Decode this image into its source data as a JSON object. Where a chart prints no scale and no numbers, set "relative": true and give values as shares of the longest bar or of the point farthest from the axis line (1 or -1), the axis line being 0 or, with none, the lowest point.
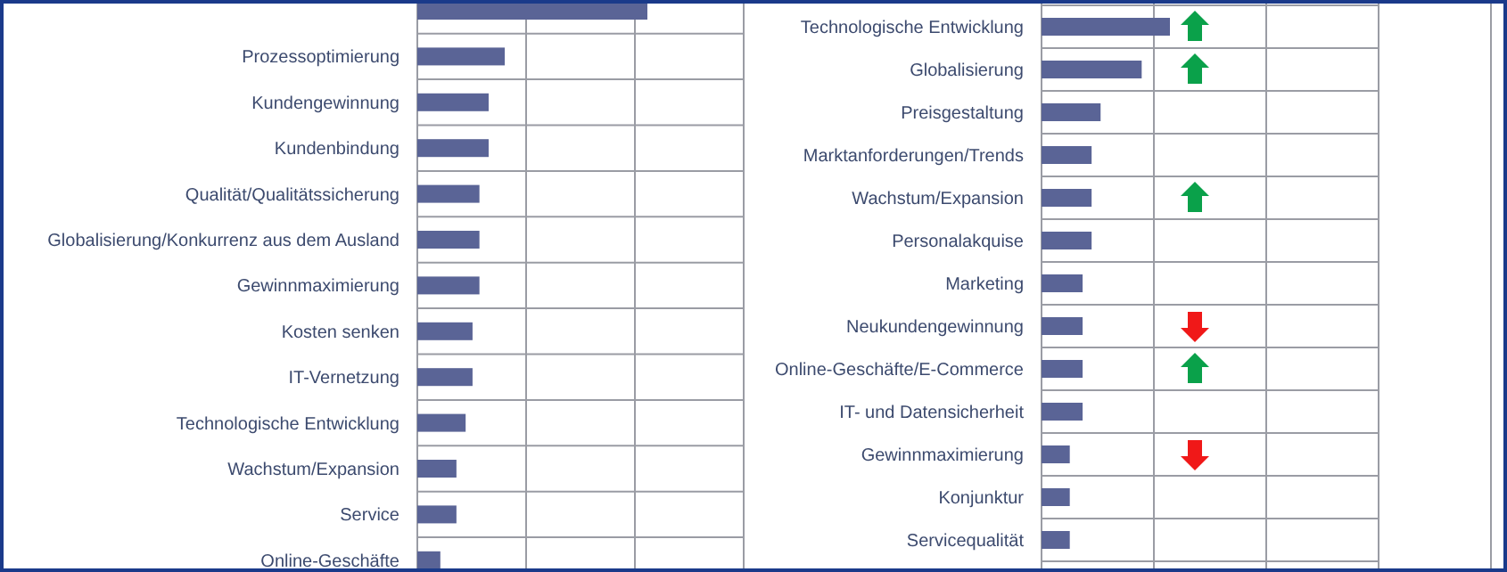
{
  "chart_data": [
    {
      "type": "bar",
      "orientation": "horizontal",
      "relative": true,
      "grid": true,
      "color": "#5a6496",
      "categories": [
        null,
        "Prozessoptimierung",
        "Kundengewinnung",
        "Kundenbindung",
        "Qualität/Qualitätssicherung",
        "Globalisierung/Konkurrenz aus dem Ausland",
        "Gewinnmaximierung",
        "Kosten senken",
        "IT-Vernetzung",
        "Technologische Entwicklung",
        "Wachstum/Expansion",
        "Service",
        "Online-Geschäfte"
      ],
      "values": [
        1,
        0.38,
        0.31,
        0.31,
        0.27,
        0.27,
        0.27,
        0.24,
        0.24,
        0.21,
        0.17,
        0.17,
        0.1
      ]
    },
    {
      "type": "bar",
      "orientation": "horizontal",
      "relative": true,
      "grid": true,
      "color": "#5a6496",
      "categories": [
        null,
        "Technologische Entwicklung",
        "Globalisierung",
        "Preisgestaltung",
        "Marktanforderungen/Trends",
        "Wachstum/Expansion",
        "Personalakquise",
        "Marketing",
        "Neukundengewinnung",
        "Online-Geschäfte/E-Commerce",
        "IT- und Datensicherheit",
        "Gewinnmaximierung",
        "Konjunktur",
        "Servicequalität",
        null
      ],
      "values": [
        null,
        1,
        0.78,
        0.46,
        0.39,
        0.39,
        0.39,
        0.32,
        0.32,
        0.32,
        0.32,
        0.22,
        0.22,
        0.22,
        null
      ]
    }
  ]
}
